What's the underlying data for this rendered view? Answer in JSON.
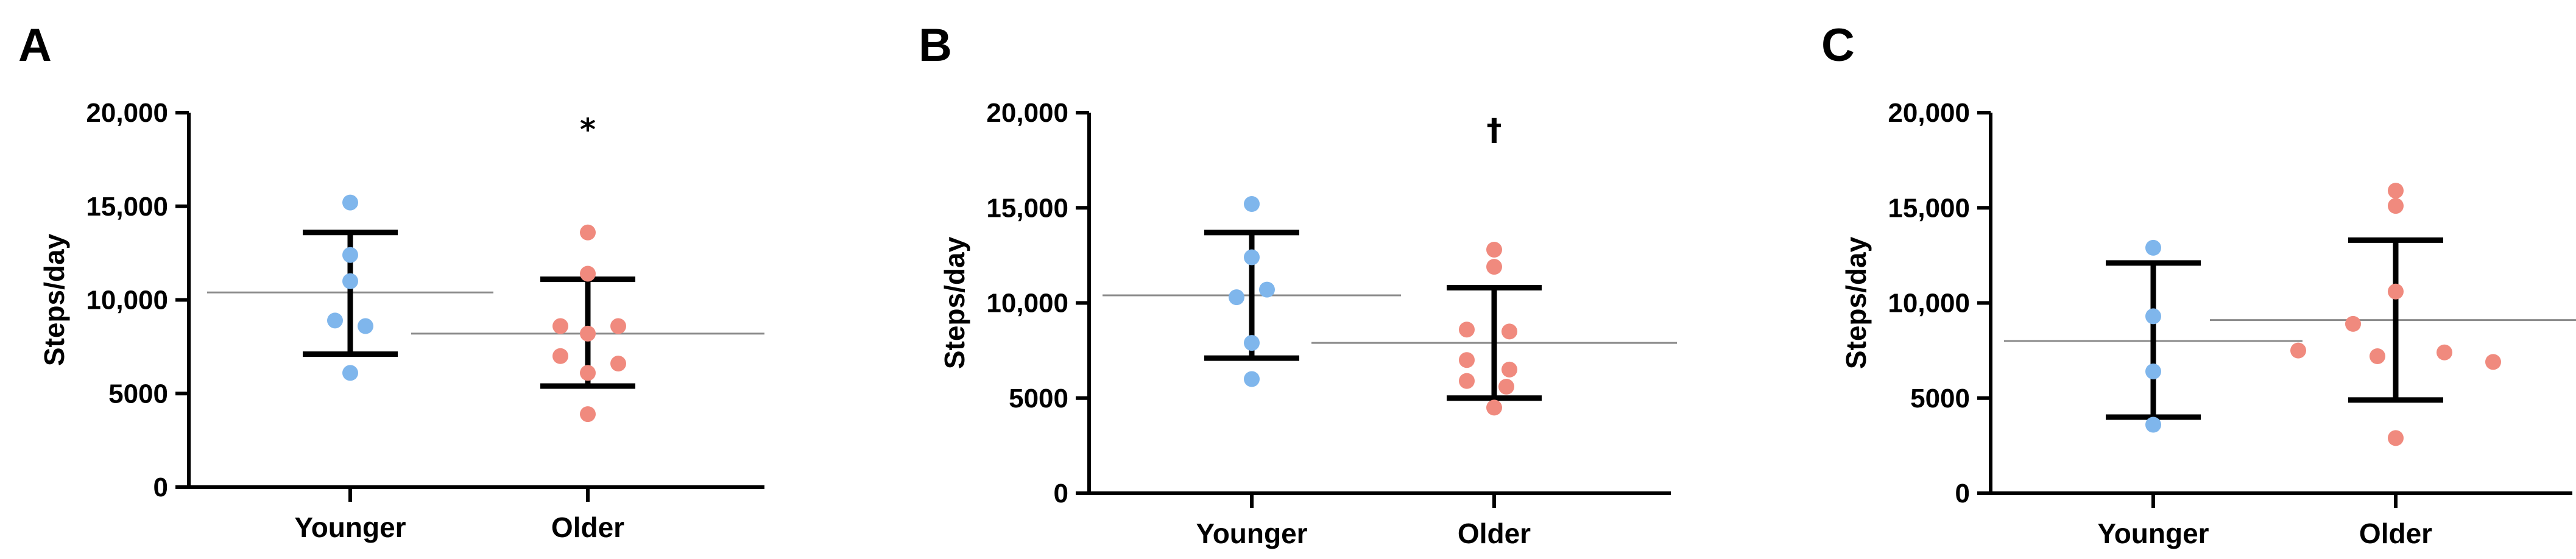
{
  "figure": {
    "colors": {
      "younger": "#7FB6EC",
      "older": "#F08A7E",
      "axis": "#000000",
      "mean_line": "#8a8a8a"
    }
  },
  "chart_data": [
    {
      "panel": "A",
      "type": "scatter",
      "ylabel": "Steps/day",
      "ylim": [
        0,
        20000
      ],
      "yticks": [
        0,
        5000,
        10000,
        15000,
        20000
      ],
      "ytick_labels": [
        "0",
        "5000",
        "10,000",
        "15,000",
        "20,000"
      ],
      "categories": [
        "Younger",
        "Older"
      ],
      "annotation": "*",
      "groups": [
        {
          "category": "Younger",
          "values": [
            15200,
            12400,
            11000,
            8900,
            8600,
            6100
          ],
          "mean": 10400,
          "error_low": 7100,
          "error_high": 13600
        },
        {
          "category": "Older",
          "values": [
            13600,
            11400,
            8600,
            8600,
            8200,
            7000,
            6600,
            6100,
            3900
          ],
          "mean": 8200,
          "error_low": 5400,
          "error_high": 11100
        }
      ]
    },
    {
      "panel": "B",
      "type": "scatter",
      "ylabel": "Steps/day",
      "ylim": [
        0,
        20000
      ],
      "yticks": [
        0,
        5000,
        10000,
        15000,
        20000
      ],
      "ytick_labels": [
        "0",
        "5000",
        "10,000",
        "15,000",
        "20,000"
      ],
      "categories": [
        "Younger",
        "Older"
      ],
      "annotation": "†",
      "groups": [
        {
          "category": "Younger",
          "values": [
            15200,
            12400,
            10700,
            10300,
            7900,
            6000
          ],
          "mean": 10400,
          "error_low": 7100,
          "error_high": 13700
        },
        {
          "category": "Older",
          "values": [
            12800,
            11900,
            8600,
            8500,
            7000,
            6500,
            5900,
            5600,
            4500
          ],
          "mean": 7900,
          "error_low": 5000,
          "error_high": 10800
        }
      ]
    },
    {
      "panel": "C",
      "type": "scatter",
      "ylabel": "Steps/day",
      "ylim": [
        0,
        20000
      ],
      "yticks": [
        0,
        5000,
        10000,
        15000,
        20000
      ],
      "ytick_labels": [
        "0",
        "5000",
        "10,000",
        "15,000",
        "20,000"
      ],
      "categories": [
        "Younger",
        "Older"
      ],
      "annotation": "",
      "groups": [
        {
          "category": "Younger",
          "values": [
            12900,
            9300,
            6400,
            3600
          ],
          "mean": 8000,
          "error_low": 4000,
          "error_high": 12100
        },
        {
          "category": "Older",
          "values": [
            15900,
            15100,
            10600,
            8900,
            7500,
            7400,
            7200,
            6900,
            2900
          ],
          "mean": 9100,
          "error_low": 4900,
          "error_high": 13300
        }
      ]
    }
  ]
}
